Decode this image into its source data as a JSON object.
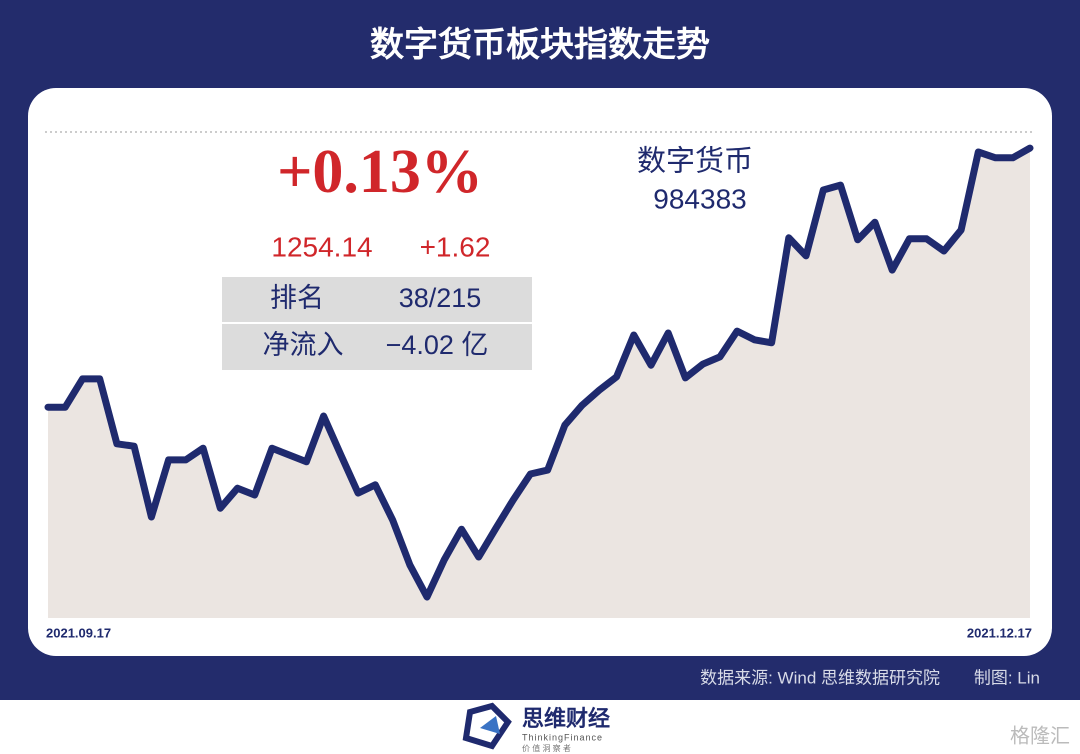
{
  "title": "数字货币板块指数走势",
  "chart_data": {
    "type": "line",
    "categories": [
      "2021.09.17",
      null,
      null,
      null,
      null,
      null,
      null,
      null,
      null,
      null,
      null,
      null,
      null,
      null,
      null,
      null,
      null,
      null,
      null,
      null,
      null,
      null,
      null,
      null,
      null,
      null,
      null,
      null,
      null,
      null,
      null,
      null,
      null,
      null,
      null,
      null,
      null,
      null,
      null,
      null,
      null,
      null,
      null,
      null,
      null,
      null,
      null,
      null,
      null,
      null,
      null,
      null,
      null,
      null,
      null,
      null,
      null,
      "2021.12.17"
    ],
    "values": [
      43.2,
      43.2,
      49.0,
      49.0,
      35.7,
      35.2,
      20.7,
      32.4,
      32.4,
      34.8,
      22.5,
      26.6,
      25.2,
      34.8,
      33.4,
      32.0,
      41.4,
      33.4,
      25.6,
      27.3,
      20.1,
      10.9,
      4.3,
      11.9,
      18.2,
      12.5,
      18.4,
      24.2,
      29.5,
      30.3,
      39.5,
      43.6,
      46.7,
      49.4,
      58.0,
      51.8,
      58.4,
      49.2,
      52.0,
      53.5,
      58.8,
      57.0,
      56.4,
      77.9,
      74.2,
      87.7,
      88.7,
      77.5,
      81.1,
      71.3,
      77.7,
      77.7,
      75.2,
      79.5,
      95.5,
      94.3,
      94.3,
      96.3
    ],
    "color": "#1f2a6e",
    "area_color": "#ebe5e1",
    "ylim": [
      0,
      100
    ]
  },
  "panel": {
    "change": "+0.13%",
    "close": "1254.14",
    "delta": "+1.62",
    "rows": [
      [
        "排名",
        "38/215"
      ],
      [
        "净流入",
        "−4.02 亿"
      ]
    ],
    "name": "数字货币",
    "code": "984383"
  },
  "source": "数据来源: Wind  思维数据研究院",
  "credit": "制图: Lin",
  "footer": {
    "brand": "思维财经",
    "brand_en": "ThinkingFinance",
    "motto": "价 值 洞 察 者",
    "watermark": "格隆汇"
  }
}
